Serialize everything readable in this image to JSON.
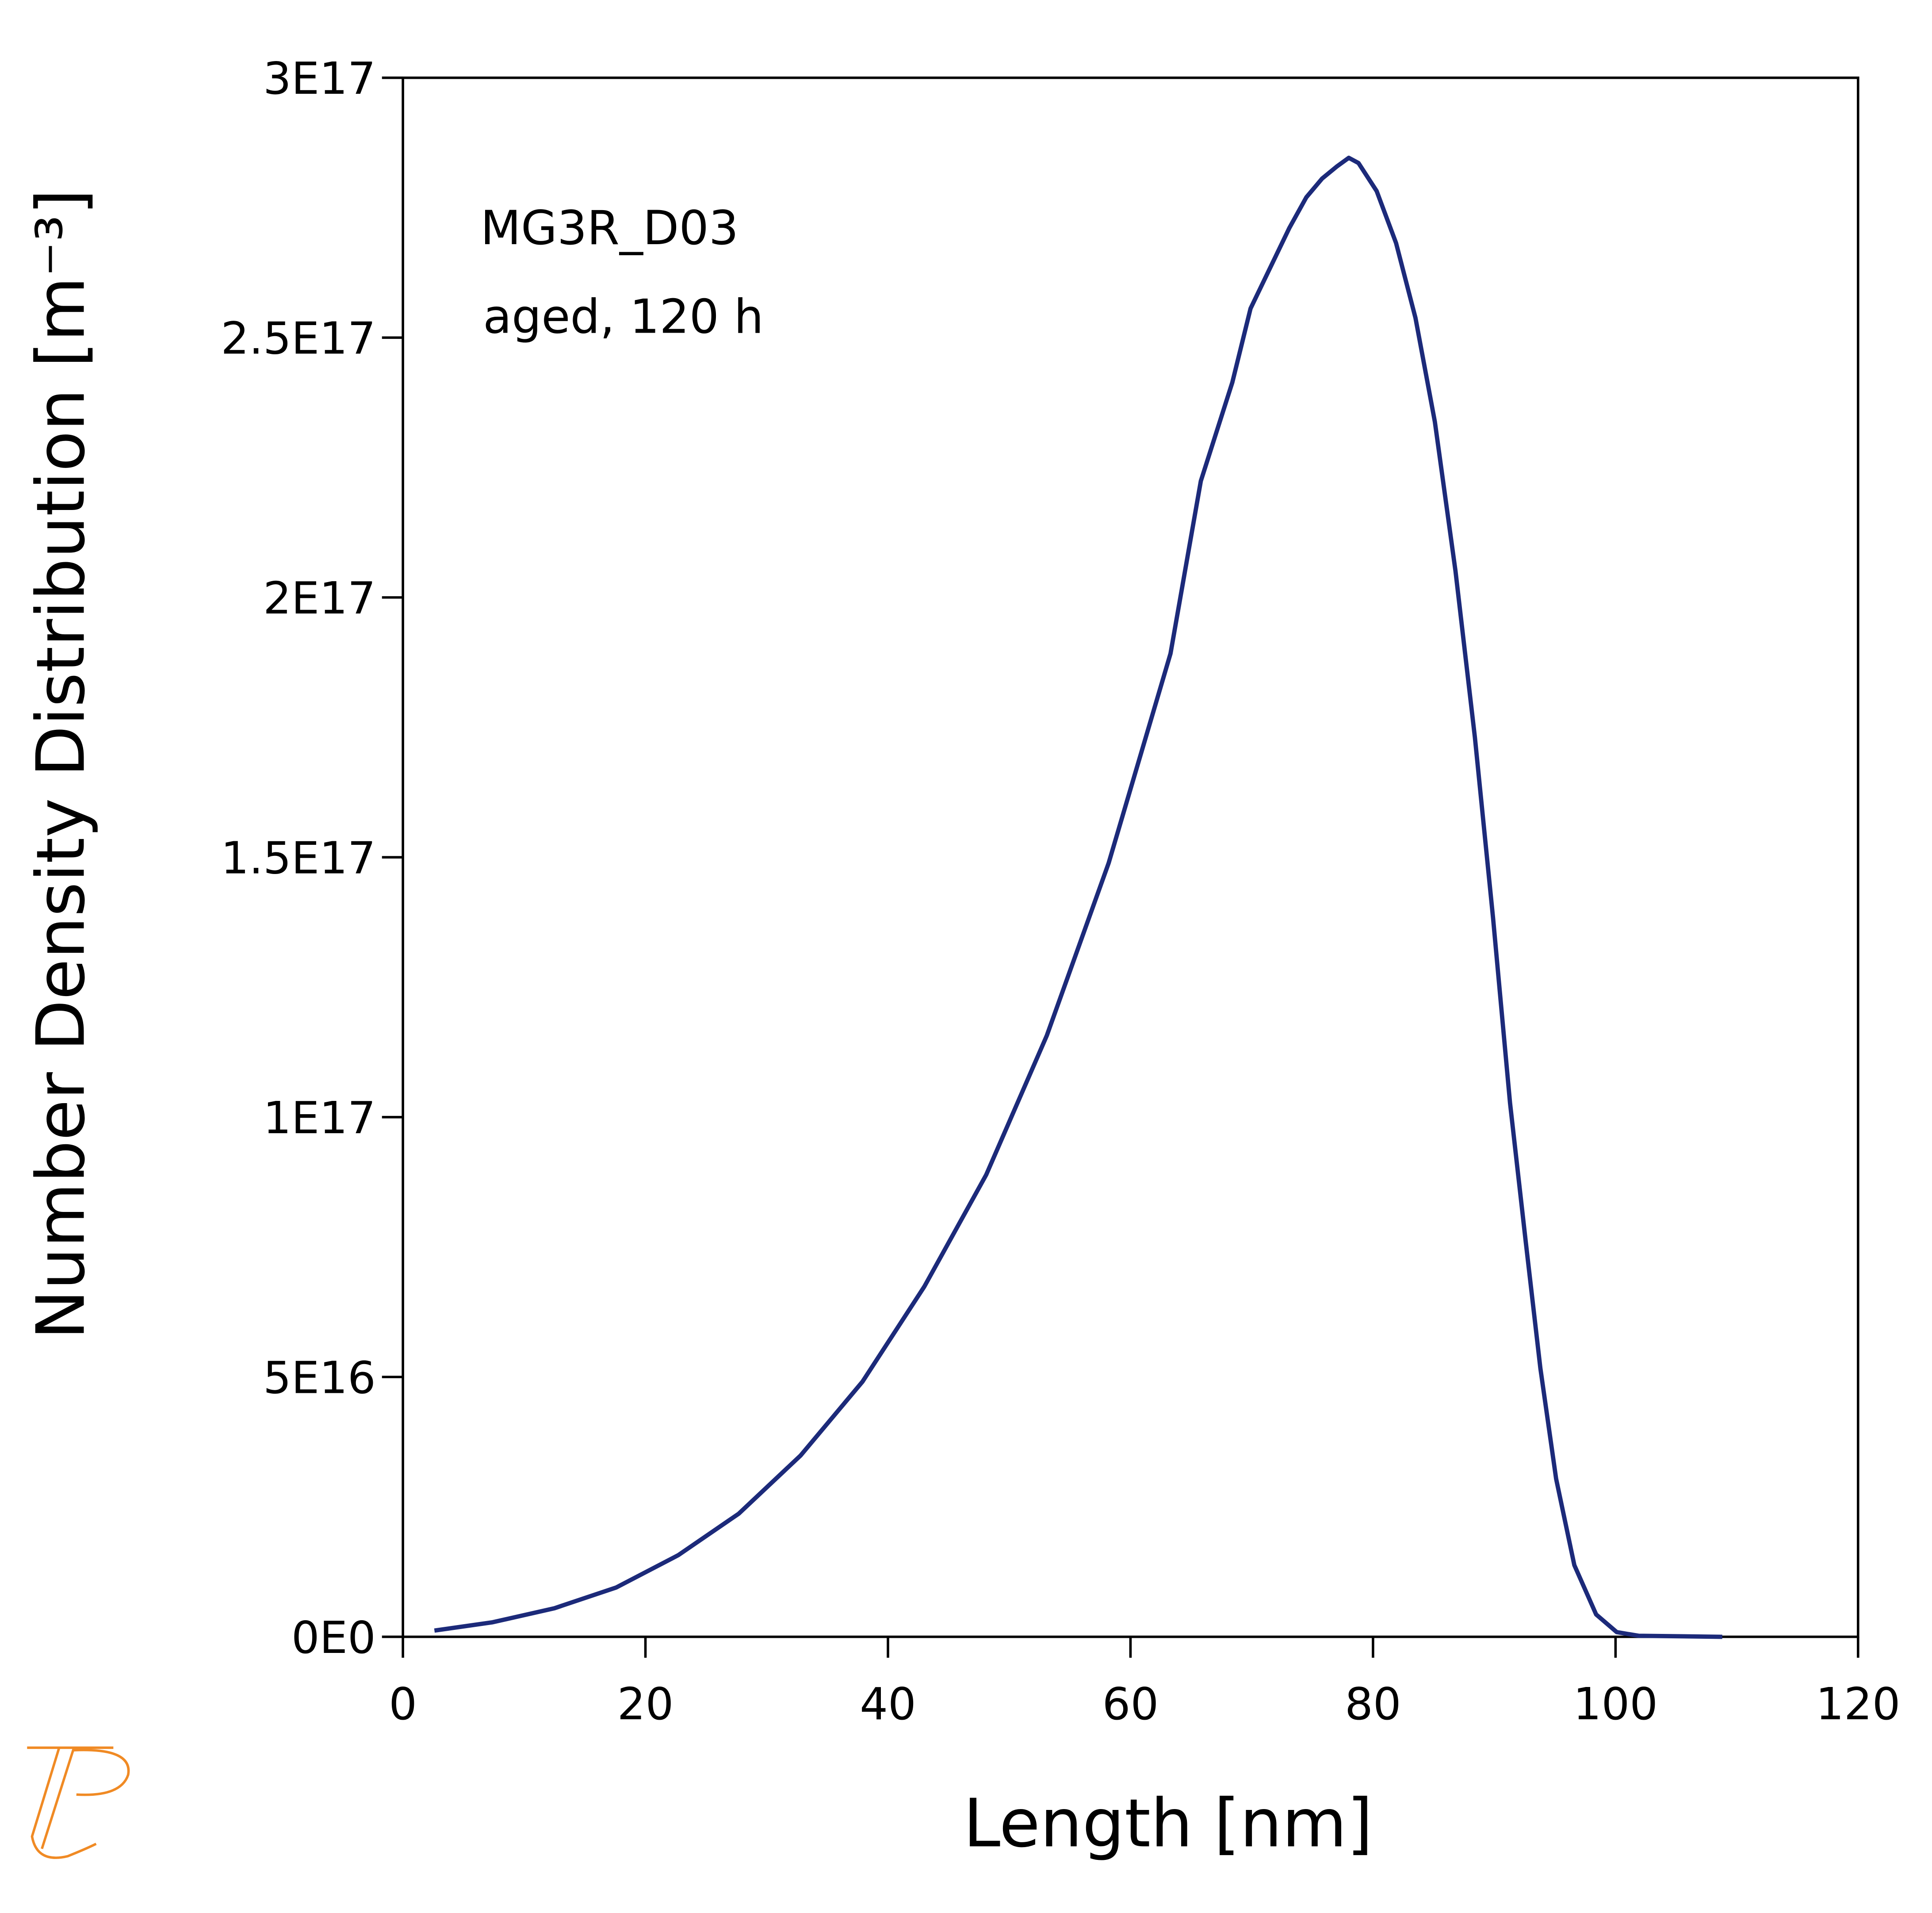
{
  "chart_data": {
    "type": "line",
    "xlabel": "Length [nm]",
    "ylabel": "Number Density Distribution [m⁻³]",
    "annotations": [
      "MG3R_D03",
      "aged, 120 h"
    ],
    "xlim": [
      0,
      120
    ],
    "xticks": [
      0,
      20,
      40,
      60,
      80,
      100,
      120
    ],
    "ylim": [
      0,
      3e+17
    ],
    "yticks": [
      {
        "value": 0,
        "label": "0E0"
      },
      {
        "value": 5e+16,
        "label": "5E16"
      },
      {
        "value": 1e+17,
        "label": "1E17"
      },
      {
        "value": 1.5e+17,
        "label": "1.5E17"
      },
      {
        "value": 2e+17,
        "label": "2E17"
      },
      {
        "value": 2.5e+17,
        "label": "2.5E17"
      },
      {
        "value": 3e+17,
        "label": "3E17"
      }
    ],
    "x": [
      2.6,
      7.4,
      12.5,
      17.6,
      22.7,
      27.7,
      32.8,
      37.9,
      43.0,
      48.1,
      53.1,
      58.2,
      63.3,
      65.8,
      68.4,
      69.9,
      73.1,
      74.5,
      75.8,
      77.0,
      78.0,
      78.8,
      80.3,
      81.9,
      83.5,
      85.1,
      86.8,
      88.4,
      89.9,
      91.3,
      92.6,
      93.8,
      95.1,
      96.6,
      98.4,
      100.1,
      101.9,
      108.8
    ],
    "series": [
      {
        "color": "#1c2a7a",
        "values": [
          1200000000000000.0,
          2800000000000000.0,
          5500000000000000.0,
          9500000000000000.0,
          1.57e+16,
          2.37e+16,
          3.49e+16,
          4.91e+16,
          6.74e+16,
          8.89e+16,
          1.157e+17,
          1.489e+17,
          1.892e+17,
          2.224e+17,
          2.414e+17,
          2.556e+17,
          2.711e+17,
          2.77e+17,
          2.806e+17,
          2.829e+17,
          2.846e+17,
          2.836e+17,
          2.782e+17,
          2.682e+17,
          2.538e+17,
          2.338e+17,
          2.051e+17,
          1.731e+17,
          1.383e+17,
          1.027e+17,
          7.59e+16,
          5.17e+16,
          3.04e+16,
          1.38e+16,
          4300000000000000.0,
          900000000000000.0,
          200000000000000.0,
          0
        ]
      }
    ]
  }
}
